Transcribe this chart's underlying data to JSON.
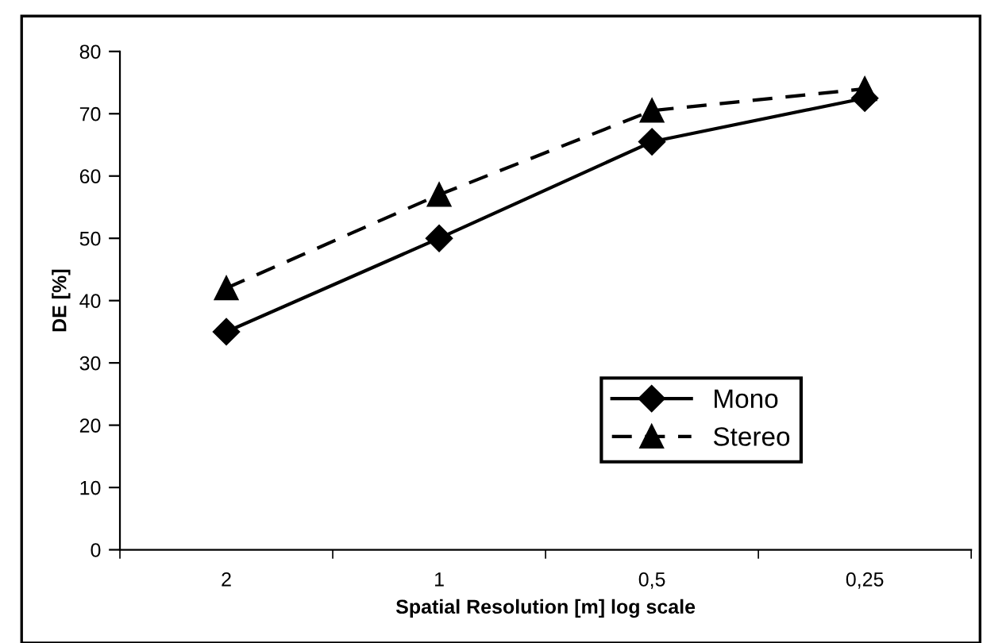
{
  "chart_data": {
    "type": "line",
    "xlabel": "Spatial Resolution [m] log scale",
    "ylabel": "DE [%]",
    "categories": [
      "2",
      "1",
      "0,5",
      "0,25"
    ],
    "series": [
      {
        "name": "Mono",
        "color": "#000000",
        "values": [
          35,
          50,
          65.5,
          72.5
        ],
        "marker": "diamond",
        "line_style": "solid"
      },
      {
        "name": "Stereo",
        "color": "#000000",
        "values": [
          42,
          57,
          70.5,
          74
        ],
        "marker": "triangle",
        "line_style": "dashed"
      }
    ],
    "ylim": [
      0,
      80
    ],
    "yticks": [
      0,
      10,
      20,
      30,
      40,
      50,
      60,
      70,
      80
    ],
    "grid": false,
    "legend": "bottom right"
  }
}
